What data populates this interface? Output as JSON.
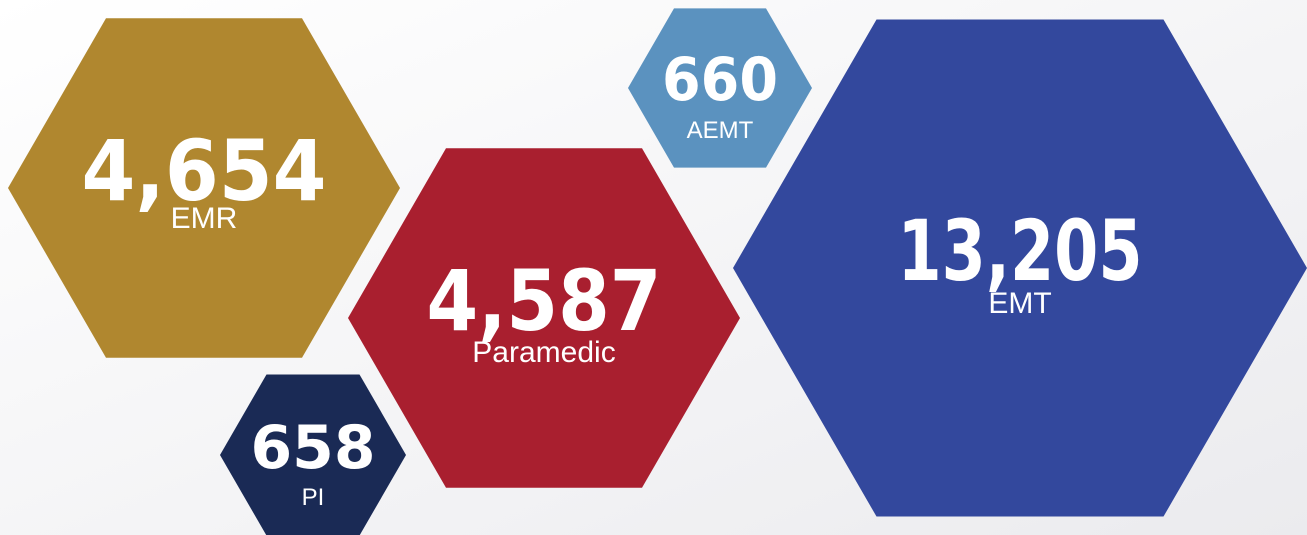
{
  "items": [
    {
      "number": "4,654",
      "label": "EMR"
    },
    {
      "number": "4,587",
      "label": "Paramedic"
    },
    {
      "number": "658",
      "label": "PI"
    },
    {
      "number": "660",
      "label": "AEMT"
    },
    {
      "number": "13,205",
      "label": "EMT"
    }
  ]
}
